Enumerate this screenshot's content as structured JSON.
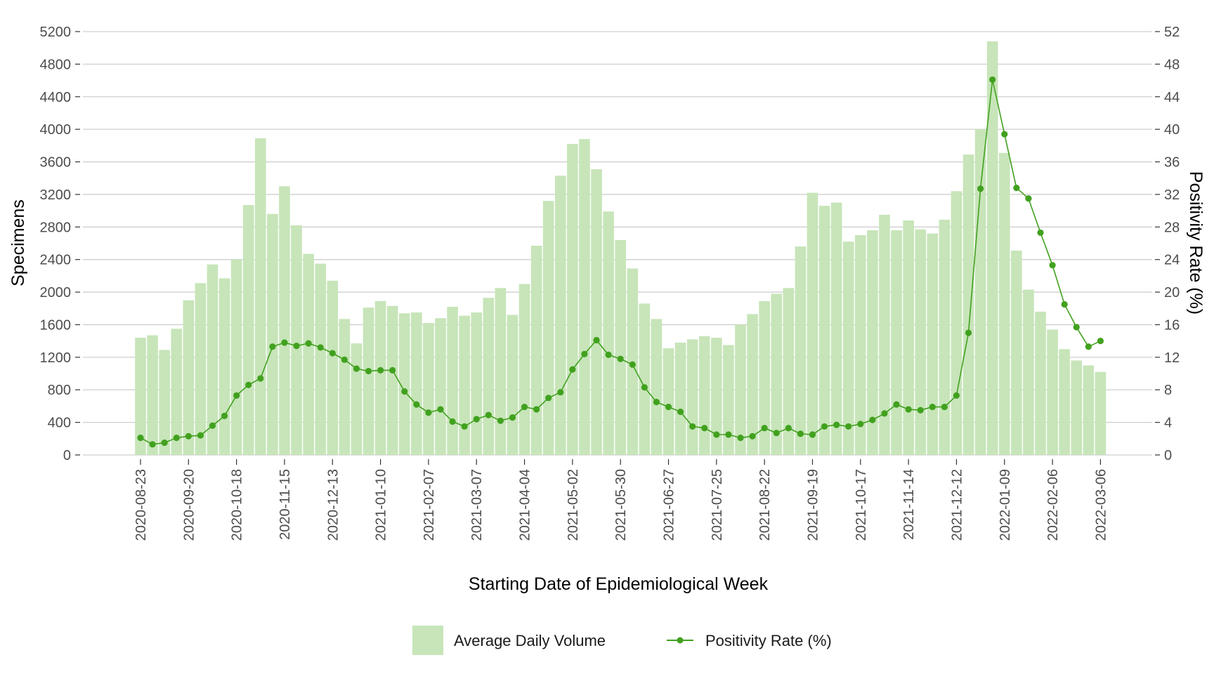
{
  "chart_data": {
    "type": "bar",
    "xlabel": "Starting Date of Epidemiological Week",
    "ylabel": "Specimens",
    "y2label": "Positivity Rate (%)",
    "ylim": [
      0,
      5200
    ],
    "y2lim": [
      0,
      52
    ],
    "yticks": [
      0,
      400,
      800,
      1200,
      1600,
      2000,
      2400,
      2800,
      3200,
      3600,
      4000,
      4400,
      4800,
      5200
    ],
    "y2ticks": [
      0,
      4,
      8,
      12,
      16,
      20,
      24,
      28,
      32,
      36,
      40,
      44,
      48,
      52
    ],
    "xtick_labels": [
      "2020-08-23",
      "2020-09-20",
      "2020-10-18",
      "2020-11-15",
      "2020-12-13",
      "2021-01-10",
      "2021-02-07",
      "2021-03-07",
      "2021-04-04",
      "2021-05-02",
      "2021-05-30",
      "2021-06-27",
      "2021-07-25",
      "2021-08-22",
      "2021-09-19",
      "2021-10-17",
      "2021-11-14",
      "2021-12-12",
      "2022-01-09",
      "2022-02-06",
      "2022-03-06"
    ],
    "xtick_every": 4,
    "grid": true,
    "legend_position": "bottom",
    "series": [
      {
        "name": "Average Daily Volume",
        "type": "bar",
        "color": "#c7e5b9",
        "values": [
          1440,
          1470,
          1290,
          1550,
          1900,
          2110,
          2340,
          2170,
          2400,
          3070,
          3890,
          2960,
          3300,
          2820,
          2470,
          2350,
          2140,
          1670,
          1370,
          1810,
          1890,
          1830,
          1740,
          1750,
          1620,
          1680,
          1820,
          1710,
          1750,
          1930,
          2050,
          1720,
          2100,
          2570,
          3120,
          3430,
          3820,
          3880,
          3510,
          2990,
          2640,
          2290,
          1860,
          1670,
          1310,
          1380,
          1420,
          1460,
          1440,
          1350,
          1600,
          1730,
          1890,
          1980,
          2050,
          2560,
          3220,
          3060,
          3100,
          2620,
          2700,
          2760,
          2950,
          2760,
          2880,
          2770,
          2720,
          2890,
          3240,
          3690,
          4000,
          5080,
          3710,
          2510,
          2030,
          1760,
          1540,
          1300,
          1160,
          1100,
          1020
        ]
      },
      {
        "name": "Positivity Rate (%)",
        "type": "line",
        "color": "#41a11e",
        "values": [
          2.1,
          1.3,
          1.5,
          2.1,
          2.3,
          2.4,
          3.6,
          4.8,
          7.3,
          8.6,
          9.4,
          13.3,
          13.8,
          13.4,
          13.7,
          13.2,
          12.5,
          11.7,
          10.6,
          10.3,
          10.4,
          10.4,
          7.8,
          6.2,
          5.2,
          5.6,
          4.1,
          3.5,
          4.4,
          4.9,
          4.2,
          4.6,
          5.9,
          5.6,
          7.0,
          7.7,
          10.5,
          12.4,
          14.1,
          12.3,
          11.8,
          11.1,
          8.3,
          6.5,
          5.9,
          5.3,
          3.5,
          3.3,
          2.5,
          2.5,
          2.1,
          2.3,
          3.3,
          2.7,
          3.3,
          2.6,
          2.5,
          3.5,
          3.7,
          3.5,
          3.8,
          4.3,
          5.1,
          6.2,
          5.6,
          5.5,
          5.9,
          5.9,
          7.3,
          15.0,
          32.7,
          46.1,
          39.4,
          32.8,
          31.5,
          27.3,
          23.3,
          18.5,
          15.7,
          13.3,
          14.0
        ]
      }
    ]
  }
}
